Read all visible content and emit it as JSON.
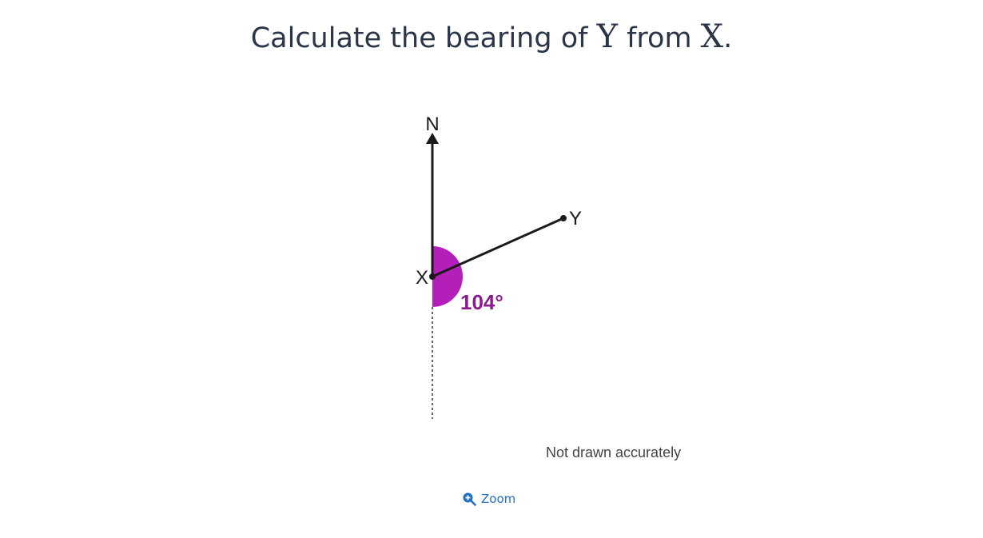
{
  "question": {
    "prefix": "Calculate the bearing of ",
    "point_to": "Y",
    "middle": " from ",
    "point_from": "X",
    "suffix": "."
  },
  "diagram": {
    "north_label": "N",
    "point_x_label": "X",
    "point_y_label": "Y",
    "angle_label": "104°",
    "angle_color": "#b31fb8",
    "angle_text_color": "#8c1a8f",
    "note": "Not drawn accurately"
  },
  "zoom": {
    "label": "Zoom",
    "icon": "zoom-in-icon",
    "color": "#1f6fc5"
  }
}
